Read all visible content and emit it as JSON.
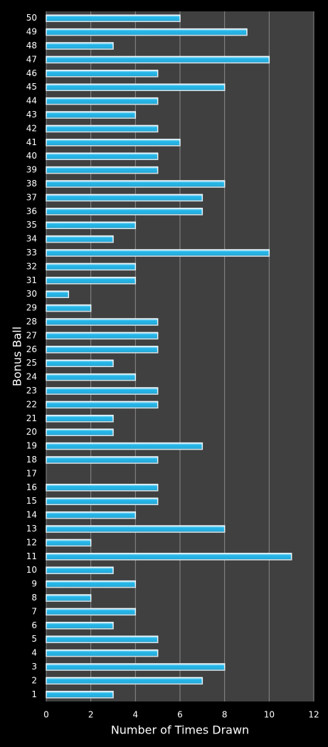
{
  "chart_data": {
    "type": "bar",
    "orientation": "horizontal",
    "x_label": "Number of Times Drawn",
    "y_label": "Bonus Ball",
    "categories": [
      "1",
      "2",
      "3",
      "4",
      "5",
      "6",
      "7",
      "8",
      "9",
      "10",
      "11",
      "12",
      "13",
      "14",
      "15",
      "16",
      "17",
      "18",
      "19",
      "20",
      "21",
      "22",
      "23",
      "24",
      "25",
      "26",
      "27",
      "28",
      "29",
      "30",
      "31",
      "32",
      "33",
      "34",
      "35",
      "36",
      "37",
      "38",
      "39",
      "40",
      "41",
      "42",
      "43",
      "44",
      "45",
      "46",
      "47",
      "48",
      "49",
      "50"
    ],
    "values": [
      3,
      7,
      8,
      5,
      5,
      3,
      4,
      2,
      4,
      3,
      11,
      2,
      8,
      4,
      5,
      5,
      0,
      5,
      7,
      3,
      3,
      5,
      5,
      4,
      3,
      5,
      5,
      5,
      2,
      1,
      4,
      4,
      10,
      3,
      4,
      7,
      7,
      8,
      5,
      5,
      6,
      5,
      4,
      5,
      8,
      5,
      10,
      3,
      9,
      6
    ],
    "color": "#1fb4e8",
    "xlim": [
      0,
      12
    ],
    "xticks": [
      0,
      2,
      4,
      6,
      8,
      10,
      12
    ],
    "grid": true
  }
}
